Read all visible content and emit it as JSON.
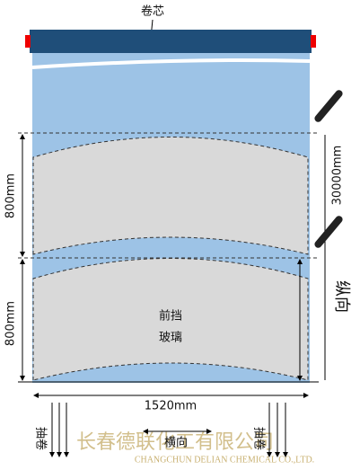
{
  "core_label": "卷芯",
  "dimensions": {
    "upper_height": "800mm",
    "lower_height": "800mm",
    "total_length": "30000mm",
    "width": "1520mm"
  },
  "directions": {
    "longitudinal": "纵向",
    "transverse": "横向",
    "pull_left": "抽卷",
    "pull_right": "抽卷"
  },
  "part_label": {
    "line1": "前挡",
    "line2": "玻璃"
  },
  "watermark": {
    "company": "长春德联化工有限公司",
    "company_en": "CHANGCHUN DELIAN CHEMICAL CO.,LTD."
  }
}
